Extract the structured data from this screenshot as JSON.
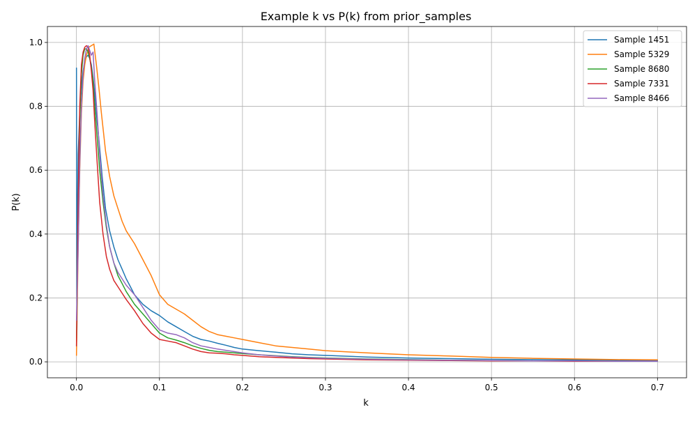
{
  "chart_data": {
    "type": "line",
    "title": "Example k vs P(k) from prior_samples",
    "xlabel": "k",
    "ylabel": "P(k)",
    "xlim": [
      -0.035,
      0.735
    ],
    "ylim": [
      -0.05,
      1.05
    ],
    "xticks": [
      0.0,
      0.1,
      0.2,
      0.3,
      0.4,
      0.5,
      0.6,
      0.7
    ],
    "xtick_labels": [
      "0.0",
      "0.1",
      "0.2",
      "0.3",
      "0.4",
      "0.5",
      "0.6",
      "0.7"
    ],
    "yticks": [
      0.0,
      0.2,
      0.4,
      0.6,
      0.8,
      1.0
    ],
    "ytick_labels": [
      "0.0",
      "0.2",
      "0.4",
      "0.6",
      "0.8",
      "1.0"
    ],
    "grid": true,
    "legend": "top-right",
    "series": [
      {
        "name": "Sample 1451",
        "color": "#1f77b4",
        "x": [
          0.0,
          0.0005,
          0.001,
          0.002,
          0.004,
          0.006,
          0.008,
          0.01,
          0.012,
          0.014,
          0.016,
          0.018,
          0.02,
          0.022,
          0.025,
          0.028,
          0.031,
          0.035,
          0.04,
          0.045,
          0.05,
          0.055,
          0.06,
          0.065,
          0.07,
          0.08,
          0.09,
          0.1,
          0.11,
          0.12,
          0.13,
          0.14,
          0.15,
          0.16,
          0.17,
          0.18,
          0.19,
          0.2,
          0.22,
          0.24,
          0.26,
          0.28,
          0.3,
          0.35,
          0.4,
          0.45,
          0.5,
          0.55,
          0.6,
          0.65,
          0.7
        ],
        "y": [
          0.92,
          0.1,
          0.4,
          0.65,
          0.78,
          0.86,
          0.91,
          0.94,
          0.955,
          0.96,
          0.95,
          0.93,
          0.89,
          0.84,
          0.75,
          0.67,
          0.58,
          0.48,
          0.41,
          0.36,
          0.32,
          0.29,
          0.26,
          0.235,
          0.21,
          0.18,
          0.16,
          0.145,
          0.125,
          0.11,
          0.095,
          0.08,
          0.07,
          0.065,
          0.058,
          0.052,
          0.045,
          0.04,
          0.035,
          0.03,
          0.025,
          0.022,
          0.02,
          0.015,
          0.012,
          0.01,
          0.008,
          0.007,
          0.006,
          0.005,
          0.004
        ]
      },
      {
        "name": "Sample 5329",
        "color": "#ff7f0e",
        "x": [
          0.0,
          0.002,
          0.004,
          0.006,
          0.008,
          0.01,
          0.012,
          0.015,
          0.018,
          0.021,
          0.024,
          0.027,
          0.03,
          0.035,
          0.04,
          0.045,
          0.05,
          0.055,
          0.06,
          0.07,
          0.08,
          0.09,
          0.1,
          0.11,
          0.12,
          0.13,
          0.14,
          0.15,
          0.16,
          0.17,
          0.18,
          0.19,
          0.2,
          0.22,
          0.24,
          0.26,
          0.28,
          0.3,
          0.35,
          0.4,
          0.45,
          0.5,
          0.55,
          0.6,
          0.65,
          0.7
        ],
        "y": [
          0.02,
          0.35,
          0.6,
          0.78,
          0.88,
          0.93,
          0.96,
          0.985,
          0.99,
          0.995,
          0.93,
          0.86,
          0.78,
          0.66,
          0.58,
          0.52,
          0.48,
          0.44,
          0.41,
          0.37,
          0.32,
          0.27,
          0.21,
          0.18,
          0.165,
          0.15,
          0.13,
          0.11,
          0.095,
          0.085,
          0.08,
          0.075,
          0.07,
          0.06,
          0.05,
          0.045,
          0.04,
          0.035,
          0.028,
          0.022,
          0.018,
          0.014,
          0.011,
          0.009,
          0.007,
          0.006
        ]
      },
      {
        "name": "Sample 8680",
        "color": "#2ca02c",
        "x": [
          0.0,
          0.002,
          0.004,
          0.006,
          0.008,
          0.01,
          0.012,
          0.014,
          0.016,
          0.018,
          0.02,
          0.022,
          0.025,
          0.028,
          0.032,
          0.036,
          0.04,
          0.045,
          0.05,
          0.055,
          0.06,
          0.07,
          0.08,
          0.09,
          0.1,
          0.11,
          0.12,
          0.13,
          0.14,
          0.15,
          0.16,
          0.17,
          0.18,
          0.19,
          0.2,
          0.22,
          0.24,
          0.26,
          0.28,
          0.3,
          0.35,
          0.4,
          0.45,
          0.5,
          0.55,
          0.6,
          0.65,
          0.7
        ],
        "y": [
          0.05,
          0.45,
          0.75,
          0.9,
          0.96,
          0.98,
          0.98,
          0.97,
          0.95,
          0.92,
          0.88,
          0.8,
          0.7,
          0.6,
          0.5,
          0.42,
          0.36,
          0.31,
          0.27,
          0.245,
          0.22,
          0.18,
          0.15,
          0.12,
          0.09,
          0.075,
          0.068,
          0.06,
          0.05,
          0.042,
          0.036,
          0.032,
          0.03,
          0.028,
          0.026,
          0.022,
          0.019,
          0.016,
          0.014,
          0.012,
          0.009,
          0.007,
          0.005,
          0.004,
          0.003,
          0.003,
          0.002,
          0.002
        ]
      },
      {
        "name": "Sample 7331",
        "color": "#d62728",
        "x": [
          0.0,
          0.002,
          0.004,
          0.006,
          0.008,
          0.01,
          0.012,
          0.014,
          0.016,
          0.018,
          0.02,
          0.022,
          0.025,
          0.028,
          0.032,
          0.036,
          0.04,
          0.045,
          0.05,
          0.055,
          0.06,
          0.07,
          0.08,
          0.09,
          0.1,
          0.11,
          0.12,
          0.13,
          0.14,
          0.15,
          0.16,
          0.17,
          0.18,
          0.19,
          0.2,
          0.22,
          0.24,
          0.26,
          0.28,
          0.3,
          0.35,
          0.4,
          0.45,
          0.5,
          0.55,
          0.6,
          0.65,
          0.7
        ],
        "y": [
          0.05,
          0.5,
          0.8,
          0.93,
          0.97,
          0.985,
          0.99,
          0.985,
          0.96,
          0.91,
          0.85,
          0.75,
          0.62,
          0.5,
          0.4,
          0.33,
          0.29,
          0.255,
          0.235,
          0.215,
          0.195,
          0.16,
          0.12,
          0.09,
          0.07,
          0.065,
          0.06,
          0.05,
          0.04,
          0.032,
          0.028,
          0.027,
          0.025,
          0.022,
          0.02,
          0.016,
          0.014,
          0.012,
          0.01,
          0.009,
          0.006,
          0.005,
          0.004,
          0.003,
          0.003,
          0.002,
          0.002,
          0.002
        ]
      },
      {
        "name": "Sample 8466",
        "color": "#9467bd",
        "x": [
          0.0,
          0.002,
          0.004,
          0.006,
          0.008,
          0.01,
          0.012,
          0.014,
          0.016,
          0.018,
          0.02,
          0.022,
          0.025,
          0.028,
          0.032,
          0.036,
          0.04,
          0.045,
          0.05,
          0.055,
          0.06,
          0.07,
          0.08,
          0.09,
          0.1,
          0.11,
          0.12,
          0.13,
          0.14,
          0.15,
          0.16,
          0.17,
          0.18,
          0.19,
          0.2,
          0.22,
          0.24,
          0.26,
          0.28,
          0.3,
          0.35,
          0.4,
          0.45,
          0.5,
          0.55,
          0.6,
          0.65,
          0.7
        ],
        "y": [
          0.13,
          0.35,
          0.62,
          0.8,
          0.9,
          0.95,
          0.98,
          0.99,
          0.975,
          0.96,
          0.97,
          0.88,
          0.77,
          0.65,
          0.52,
          0.43,
          0.36,
          0.31,
          0.28,
          0.26,
          0.24,
          0.21,
          0.17,
          0.13,
          0.1,
          0.09,
          0.085,
          0.075,
          0.06,
          0.05,
          0.045,
          0.04,
          0.036,
          0.032,
          0.028,
          0.022,
          0.018,
          0.015,
          0.013,
          0.011,
          0.008,
          0.006,
          0.005,
          0.004,
          0.003,
          0.003,
          0.002,
          0.002
        ]
      }
    ]
  }
}
